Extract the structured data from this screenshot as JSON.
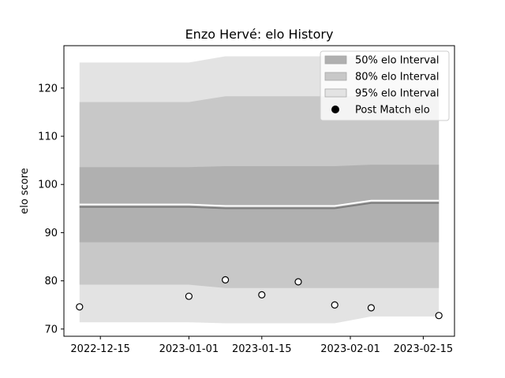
{
  "chart_data": {
    "type": "line",
    "title": "Enzo Hervé: elo History",
    "xlabel": "",
    "ylabel": "elo score",
    "x_ticks": [
      "2022-12-15",
      "2023-01-01",
      "2023-01-15",
      "2023-02-01",
      "2023-02-15"
    ],
    "y_ticks": [
      70,
      80,
      90,
      100,
      110,
      120
    ],
    "xlim": [
      "2022-12-08",
      "2023-02-21"
    ],
    "ylim": [
      68.5,
      128.8
    ],
    "legend_placement": "top-right",
    "grid": false,
    "band_dates": [
      "2022-12-11",
      "2023-01-01",
      "2023-01-08",
      "2023-01-15",
      "2023-01-22",
      "2023-01-29",
      "2023-02-05",
      "2023-02-18"
    ],
    "mean": [
      95.8,
      95.8,
      95.5,
      95.5,
      95.5,
      95.5,
      96.6,
      96.6
    ],
    "intervals": [
      {
        "name": "50% elo Interval",
        "color": "#b0b0b0",
        "upper": [
          103.6,
          103.6,
          103.8,
          103.8,
          103.8,
          103.8,
          104.1,
          104.1
        ],
        "lower": [
          88.0,
          88.0,
          88.0,
          88.0,
          88.0,
          88.0,
          88.0,
          88.0
        ]
      },
      {
        "name": "80% elo Interval",
        "color": "#c8c8c8",
        "upper": [
          117.1,
          117.1,
          118.3,
          118.3,
          118.3,
          118.3,
          118.3,
          118.3
        ],
        "lower": [
          79.2,
          79.2,
          78.5,
          78.5,
          78.5,
          78.5,
          78.5,
          78.5
        ]
      },
      {
        "name": "95% elo Interval",
        "color": "#e3e3e3",
        "upper": [
          125.3,
          125.3,
          126.6,
          126.6,
          126.6,
          126.6,
          126.6,
          126.6
        ],
        "lower": [
          71.4,
          71.4,
          71.2,
          71.2,
          71.2,
          71.2,
          72.6,
          72.6
        ]
      }
    ],
    "points": {
      "name": "Post Match elo",
      "x": [
        "2022-12-11",
        "2023-01-01",
        "2023-01-08",
        "2023-01-15",
        "2023-01-22",
        "2023-01-29",
        "2023-02-05",
        "2023-02-18"
      ],
      "y": [
        74.6,
        76.8,
        80.2,
        77.1,
        79.8,
        75.0,
        74.4,
        72.8
      ]
    },
    "legend": [
      {
        "label": "50% elo Interval",
        "kind": "patch",
        "color": "#b0b0b0"
      },
      {
        "label": "80% elo Interval",
        "kind": "patch",
        "color": "#c8c8c8"
      },
      {
        "label": "95% elo Interval",
        "kind": "patch",
        "color": "#e3e3e3"
      },
      {
        "label": "Post Match elo",
        "kind": "marker",
        "color": "#000000"
      }
    ]
  }
}
